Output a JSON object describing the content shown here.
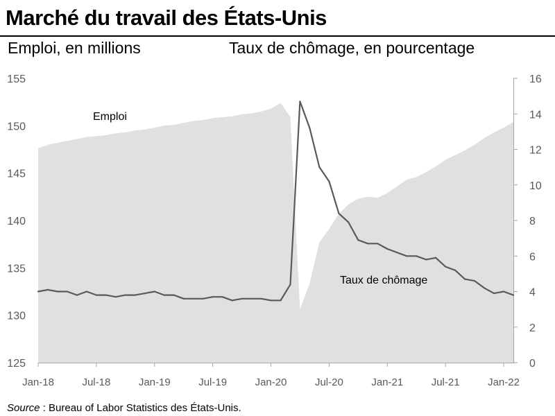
{
  "header": {
    "title": "Marché du travail des États-Unis",
    "left_axis_caption": "Emploi, en millions",
    "right_axis_caption": "Taux de chômage, en pourcentage"
  },
  "footer": {
    "source_label": "Source",
    "source_text": " : Bureau of Labor Statistics des États-Unis."
  },
  "colors": {
    "employment_fill": "#e0e0e0",
    "unemployment_line": "#595959",
    "axis": "#a6a6a6",
    "tick_text": "#595959"
  },
  "chart_data": {
    "type": "area",
    "x": [
      "2018-01",
      "2018-02",
      "2018-03",
      "2018-04",
      "2018-05",
      "2018-06",
      "2018-07",
      "2018-08",
      "2018-09",
      "2018-10",
      "2018-11",
      "2018-12",
      "2019-01",
      "2019-02",
      "2019-03",
      "2019-04",
      "2019-05",
      "2019-06",
      "2019-07",
      "2019-08",
      "2019-09",
      "2019-10",
      "2019-11",
      "2019-12",
      "2020-01",
      "2020-02",
      "2020-03",
      "2020-04",
      "2020-05",
      "2020-06",
      "2020-07",
      "2020-08",
      "2020-09",
      "2020-10",
      "2020-11",
      "2020-12",
      "2021-01",
      "2021-02",
      "2021-03",
      "2021-04",
      "2021-05",
      "2021-06",
      "2021-07",
      "2021-08",
      "2021-09",
      "2021-10",
      "2021-11",
      "2021-12",
      "2022-01",
      "2022-02"
    ],
    "x_tick_labels": [
      "Jan-18",
      "Jul-18",
      "Jan-19",
      "Jul-19",
      "Jan-20",
      "Jul-20",
      "Jan-21",
      "Jul-21",
      "Jan-22"
    ],
    "series": [
      {
        "name": "Emploi",
        "axis": "left",
        "type": "area",
        "values": [
          147.6,
          148.0,
          148.2,
          148.4,
          148.6,
          148.8,
          148.9,
          149.0,
          149.2,
          149.3,
          149.5,
          149.6,
          149.8,
          150.0,
          150.1,
          150.3,
          150.5,
          150.6,
          150.8,
          150.9,
          151.0,
          151.2,
          151.3,
          151.5,
          151.8,
          152.4,
          150.9,
          130.6,
          133.4,
          137.7,
          139.1,
          140.7,
          141.7,
          142.3,
          142.5,
          142.4,
          142.9,
          143.6,
          144.3,
          144.6,
          145.1,
          145.7,
          146.4,
          146.9,
          147.4,
          148.0,
          148.7,
          149.3,
          149.8,
          150.4
        ]
      },
      {
        "name": "Taux de chômage",
        "axis": "right",
        "type": "line",
        "values": [
          4.0,
          4.1,
          4.0,
          4.0,
          3.8,
          4.0,
          3.8,
          3.8,
          3.7,
          3.8,
          3.8,
          3.9,
          4.0,
          3.8,
          3.8,
          3.6,
          3.6,
          3.6,
          3.7,
          3.7,
          3.5,
          3.6,
          3.6,
          3.6,
          3.5,
          3.5,
          4.4,
          14.7,
          13.2,
          11.0,
          10.2,
          8.4,
          7.9,
          6.9,
          6.7,
          6.7,
          6.4,
          6.2,
          6.0,
          6.0,
          5.8,
          5.9,
          5.4,
          5.2,
          4.7,
          4.6,
          4.2,
          3.9,
          4.0,
          3.8
        ]
      }
    ],
    "y_left": {
      "min": 125,
      "max": 155,
      "ticks": [
        125,
        130,
        135,
        140,
        145,
        150,
        155
      ]
    },
    "y_right": {
      "min": 0,
      "max": 16,
      "ticks": [
        0,
        2,
        4,
        6,
        8,
        10,
        12,
        14,
        16
      ]
    },
    "annotations": [
      "Emploi",
      "Taux de chômage"
    ],
    "grid": false
  }
}
